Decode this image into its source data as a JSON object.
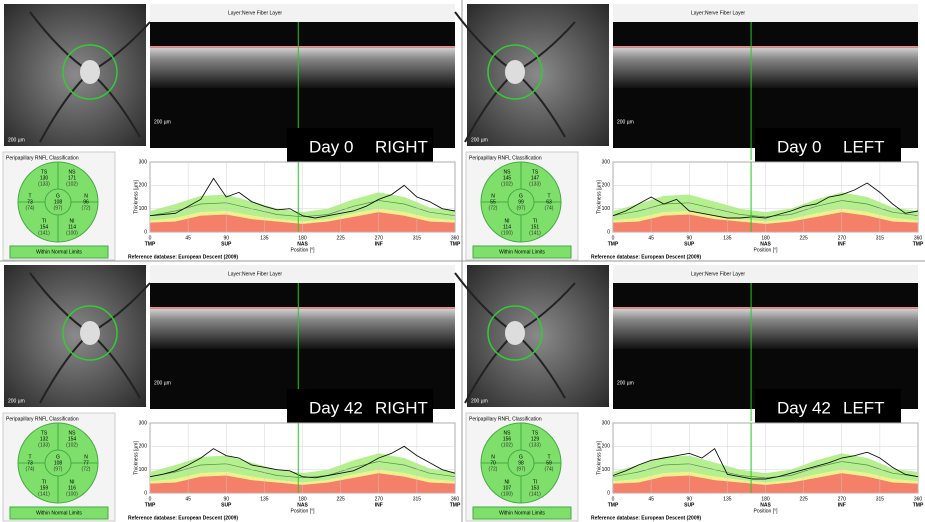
{
  "classification_title": "Peripapillary RNFL Classification",
  "layer_label": "Layer:",
  "layer_value": "Nerve Fiber Layer",
  "scale_bar": "200 µm",
  "reference": "Reference database: European Descent (2009)",
  "chart": {
    "type": "line",
    "xlabel": "Position [°]",
    "ylabel": "Thickness [µm]",
    "xlim": [
      0,
      360
    ],
    "ylim": [
      0,
      300
    ],
    "xticks": [
      0,
      45,
      90,
      135,
      180,
      225,
      270,
      315,
      360
    ],
    "yticks": [
      0,
      100,
      200,
      300
    ],
    "region_x": [
      0,
      90,
      180,
      270,
      360
    ],
    "regions": [
      "TMP",
      "SUP",
      "NAS",
      "INF",
      "TMP"
    ],
    "normative": {
      "x": [
        0,
        30,
        60,
        90,
        120,
        150,
        180,
        210,
        240,
        270,
        300,
        330,
        360
      ],
      "p95": [
        90,
        120,
        155,
        160,
        130,
        100,
        85,
        100,
        140,
        170,
        150,
        105,
        90
      ],
      "p50": [
        70,
        90,
        120,
        125,
        100,
        75,
        65,
        75,
        110,
        135,
        120,
        85,
        70
      ],
      "p5": [
        50,
        60,
        85,
        90,
        70,
        55,
        45,
        55,
        80,
        100,
        85,
        60,
        50
      ],
      "p1": [
        40,
        45,
        70,
        75,
        55,
        45,
        35,
        45,
        65,
        85,
        70,
        45,
        40
      ]
    }
  },
  "panels": [
    {
      "title": "Day 0",
      "eye": "RIGHT",
      "status": "Within Normal Limits",
      "cursor": 175,
      "sectors": [
        {
          "label": "TS",
          "value": 130,
          "norm": "(133)"
        },
        {
          "label": "NS",
          "value": 171,
          "norm": "(102)"
        },
        {
          "label": "T",
          "value": 73,
          "norm": "(74)"
        },
        {
          "label": "G",
          "value": 108,
          "norm": "(97)"
        },
        {
          "label": "N",
          "value": 96,
          "norm": "(72)"
        },
        {
          "label": "TI",
          "value": 154,
          "norm": "(141)"
        },
        {
          "label": "NI",
          "value": 114,
          "norm": "(100)"
        }
      ],
      "x": [
        0,
        15,
        30,
        45,
        60,
        75,
        90,
        105,
        120,
        135,
        150,
        165,
        180,
        195,
        210,
        225,
        240,
        255,
        270,
        285,
        300,
        315,
        330,
        345,
        360
      ],
      "thickness": [
        70,
        75,
        80,
        110,
        140,
        230,
        150,
        170,
        130,
        110,
        95,
        100,
        70,
        60,
        70,
        80,
        90,
        110,
        140,
        160,
        200,
        150,
        130,
        100,
        90
      ]
    },
    {
      "title": "Day 0",
      "eye": "LEFT",
      "status": "Within Normal Limits",
      "cursor": 163,
      "sectors": [
        {
          "label": "NS",
          "value": 145,
          "norm": "(102)"
        },
        {
          "label": "TS",
          "value": 147,
          "norm": "(133)"
        },
        {
          "label": "N",
          "value": 55,
          "norm": "(72)"
        },
        {
          "label": "G",
          "value": 99,
          "norm": "(97)"
        },
        {
          "label": "T",
          "value": 63,
          "norm": "(74)"
        },
        {
          "label": "NI",
          "value": 114,
          "norm": "(100)"
        },
        {
          "label": "TI",
          "value": 151,
          "norm": "(141)"
        }
      ],
      "x": [
        0,
        15,
        30,
        45,
        60,
        75,
        90,
        105,
        120,
        135,
        150,
        165,
        180,
        195,
        210,
        225,
        240,
        255,
        270,
        285,
        300,
        315,
        330,
        345,
        360
      ],
      "thickness": [
        70,
        90,
        120,
        150,
        120,
        140,
        90,
        80,
        70,
        60,
        60,
        65,
        60,
        75,
        90,
        110,
        120,
        150,
        160,
        180,
        210,
        170,
        120,
        80,
        90
      ]
    },
    {
      "title": "Day 42",
      "eye": "RIGHT",
      "status": "Within Normal Limits",
      "cursor": 175,
      "sectors": [
        {
          "label": "TS",
          "value": 132,
          "norm": "(133)"
        },
        {
          "label": "NS",
          "value": 154,
          "norm": "(102)"
        },
        {
          "label": "T",
          "value": 73,
          "norm": "(74)"
        },
        {
          "label": "G",
          "value": 108,
          "norm": "(97)"
        },
        {
          "label": "N",
          "value": 77,
          "norm": "(72)"
        },
        {
          "label": "TI",
          "value": 159,
          "norm": "(141)"
        },
        {
          "label": "NI",
          "value": 116,
          "norm": "(100)"
        }
      ],
      "x": [
        0,
        15,
        30,
        45,
        60,
        75,
        90,
        105,
        120,
        135,
        150,
        165,
        180,
        195,
        210,
        225,
        240,
        255,
        270,
        285,
        300,
        315,
        330,
        345,
        360
      ],
      "thickness": [
        70,
        80,
        95,
        120,
        150,
        190,
        160,
        150,
        120,
        110,
        100,
        95,
        70,
        65,
        75,
        85,
        95,
        120,
        150,
        170,
        200,
        160,
        130,
        100,
        85
      ]
    },
    {
      "title": "Day 42",
      "eye": "LEFT",
      "status": "Within Normal Limits",
      "cursor": 163,
      "sectors": [
        {
          "label": "NS",
          "value": 156,
          "norm": "(102)"
        },
        {
          "label": "TS",
          "value": 129,
          "norm": "(133)"
        },
        {
          "label": "N",
          "value": 70,
          "norm": "(72)"
        },
        {
          "label": "G",
          "value": 98,
          "norm": "(97)"
        },
        {
          "label": "T",
          "value": 59,
          "norm": "(74)"
        },
        {
          "label": "NI",
          "value": 107,
          "norm": "(100)"
        },
        {
          "label": "TI",
          "value": 153,
          "norm": "(141)"
        }
      ],
      "x": [
        0,
        15,
        30,
        45,
        60,
        75,
        90,
        105,
        120,
        135,
        150,
        165,
        180,
        195,
        210,
        225,
        240,
        255,
        270,
        285,
        300,
        315,
        330,
        345,
        360
      ],
      "thickness": [
        75,
        95,
        120,
        140,
        150,
        160,
        170,
        150,
        190,
        80,
        70,
        60,
        60,
        70,
        85,
        100,
        115,
        130,
        150,
        160,
        175,
        150,
        110,
        80,
        70
      ]
    }
  ]
}
